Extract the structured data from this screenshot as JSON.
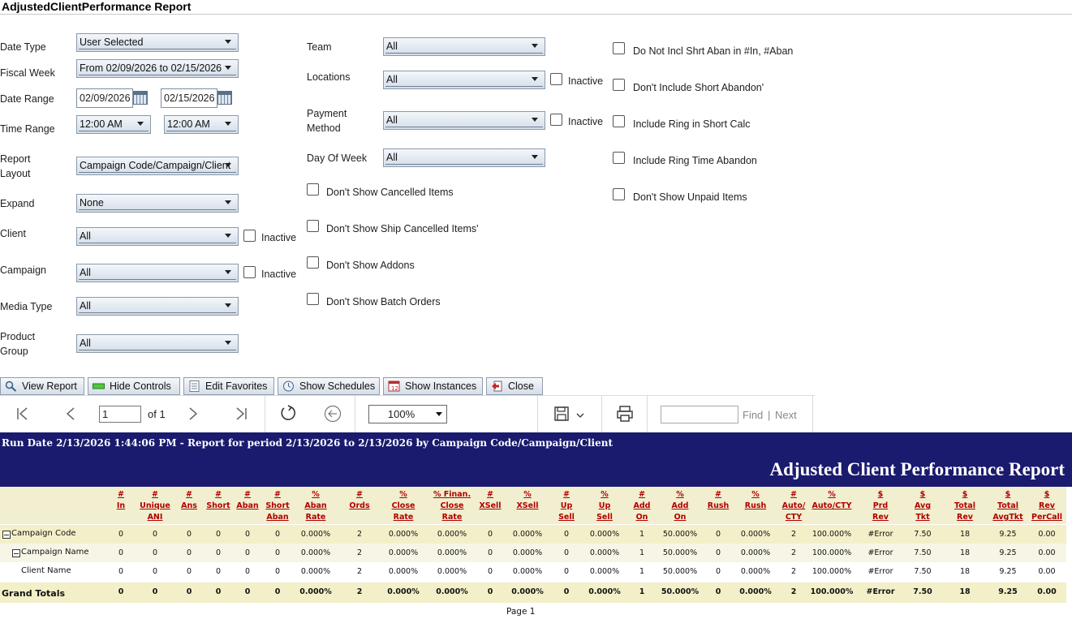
{
  "app": {
    "title": "AdjustedClientPerformance Report"
  },
  "params": {
    "date_type": {
      "label": "Date Type",
      "value": "User Selected"
    },
    "fiscal_week": {
      "label": "Fiscal Week",
      "value": "From 02/09/2026 to 02/15/2026"
    },
    "date_range": {
      "label": "Date Range",
      "start": "02/09/2026",
      "end": "02/15/2026"
    },
    "time_range": {
      "label": "Time Range",
      "start": "12:00 AM",
      "end": "12:00 AM"
    },
    "report_layout": {
      "label_line1": "Report",
      "label_line2": "Layout",
      "value": "Campaign Code/Campaign/Client"
    },
    "expand": {
      "label": "Expand",
      "value": "None"
    },
    "client": {
      "label": "Client",
      "value": "All",
      "inactive": "Inactive"
    },
    "campaign": {
      "label": "Campaign",
      "value": "All",
      "inactive": "Inactive"
    },
    "media_type": {
      "label": "Media Type",
      "value": "All"
    },
    "product_group": {
      "label_line1": "Product",
      "label_line2": "Group",
      "value": "All"
    },
    "team": {
      "label": "Team",
      "value": "All"
    },
    "locations": {
      "label": "Locations",
      "value": "All",
      "inactive": "Inactive"
    },
    "payment_method": {
      "label_line1": "Payment",
      "label_line2": "Method",
      "value": "All",
      "inactive": "Inactive"
    },
    "day_of_week": {
      "label": "Day Of Week",
      "value": "All"
    }
  },
  "checks_mid": [
    "Don't Show Cancelled Items",
    "Don't Show Ship Cancelled Items'",
    "Don't Show Addons",
    "Don't Show Batch Orders"
  ],
  "checks_right": [
    "Do Not Incl Shrt Aban in #In, #Aban",
    "Don't Include Short Abandon'",
    "Include Ring in Short Calc",
    "Include Ring Time Abandon",
    "Don't Show Unpaid Items"
  ],
  "buttons": {
    "view_report": "View Report",
    "hide_controls": "Hide Controls",
    "edit_favorites": "Edit Favorites",
    "show_schedules": "Show Schedules",
    "show_instances": "Show Instances",
    "close": "Close"
  },
  "viewer": {
    "page": "1",
    "of_label": "of 1",
    "zoom": "100%",
    "find": "Find",
    "next": "Next",
    "sep": "|"
  },
  "report": {
    "run_date": "Run Date 2/13/2026 1:44:06 PM - Report for period 2/13/2026 to 2/13/2026 by Campaign Code/Campaign/Client",
    "title": "Adjusted Client Performance Report",
    "columns": [
      [
        "#",
        "In"
      ],
      [
        "#",
        "Unique",
        "ANI"
      ],
      [
        "#",
        "Ans"
      ],
      [
        "#",
        "Short"
      ],
      [
        "#",
        "Aban"
      ],
      [
        "#",
        "Short",
        "Aban"
      ],
      [
        "%",
        "Aban",
        "Rate"
      ],
      [
        "#",
        "Ords"
      ],
      [
        "%",
        "Close",
        "Rate"
      ],
      [
        "% Finan.",
        "Close",
        "Rate"
      ],
      [
        "#",
        "XSell"
      ],
      [
        "%",
        "XSell"
      ],
      [
        "#",
        "Up",
        "Sell"
      ],
      [
        "%",
        "Up",
        "Sell"
      ],
      [
        "#",
        "Add",
        "On"
      ],
      [
        "%",
        "Add",
        "On"
      ],
      [
        "#",
        "Rush"
      ],
      [
        "%",
        "Rush"
      ],
      [
        "#",
        "Auto/",
        "CTY"
      ],
      [
        "%",
        "Auto/CTY"
      ],
      [
        "$",
        "Prd",
        "Rev"
      ],
      [
        "$",
        "Avg",
        "Tkt"
      ],
      [
        "$",
        "Total",
        "Rev"
      ],
      [
        "$",
        "Total",
        "AvgTkt"
      ],
      [
        "$",
        "Rev",
        "PerCall"
      ]
    ],
    "rows": [
      {
        "label": "Campaign Code",
        "values": [
          "0",
          "0",
          "0",
          "0",
          "0",
          "0",
          "0.000%",
          "2",
          "0.000%",
          "0.000%",
          "0",
          "0.000%",
          "0",
          "0.000%",
          "1",
          "50.000%",
          "0",
          "0.000%",
          "2",
          "100.000%",
          "#Error",
          "7.50",
          "18",
          "9.25",
          "0.00"
        ]
      },
      {
        "label": "Campaign Name",
        "values": [
          "0",
          "0",
          "0",
          "0",
          "0",
          "0",
          "0.000%",
          "2",
          "0.000%",
          "0.000%",
          "0",
          "0.000%",
          "0",
          "0.000%",
          "1",
          "50.000%",
          "0",
          "0.000%",
          "2",
          "100.000%",
          "#Error",
          "7.50",
          "18",
          "9.25",
          "0.00"
        ]
      },
      {
        "label": "Client Name",
        "values": [
          "0",
          "0",
          "0",
          "0",
          "0",
          "0",
          "0.000%",
          "2",
          "0.000%",
          "0.000%",
          "0",
          "0.000%",
          "0",
          "0.000%",
          "1",
          "50.000%",
          "0",
          "0.000%",
          "2",
          "100.000%",
          "#Error",
          "7.50",
          "18",
          "9.25",
          "0.00"
        ]
      },
      {
        "label": "Grand Totals",
        "values": [
          "0",
          "0",
          "0",
          "0",
          "0",
          "0",
          "0.000%",
          "2",
          "0.000%",
          "0.000%",
          "0",
          "0.000%",
          "0",
          "0.000%",
          "1",
          "50.000%",
          "0",
          "0.000%",
          "2",
          "100.000%",
          "#Error",
          "7.50",
          "18",
          "9.25",
          "0.00"
        ]
      }
    ],
    "page_label": "Page 1"
  }
}
